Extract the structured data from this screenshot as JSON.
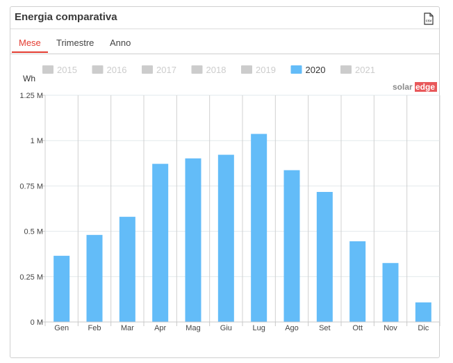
{
  "panel": {
    "title": "Energia comparativa",
    "export_icon": "csv-file-icon",
    "export_label": "CSV"
  },
  "tabs": [
    {
      "label": "Mese",
      "active": true
    },
    {
      "label": "Trimestre",
      "active": false
    },
    {
      "label": "Anno",
      "active": false
    }
  ],
  "legend": [
    {
      "label": "2015",
      "active": false
    },
    {
      "label": "2016",
      "active": false
    },
    {
      "label": "2017",
      "active": false
    },
    {
      "label": "2018",
      "active": false
    },
    {
      "label": "2019",
      "active": false
    },
    {
      "label": "2020",
      "active": true
    },
    {
      "label": "2021",
      "active": false
    }
  ],
  "brand": {
    "part1": "solar",
    "part2": "edge"
  },
  "colors": {
    "bar": "#63bcf8",
    "inactive_legend": "#cccccc",
    "active_tab": "#e33b30",
    "brand_gray": "#8a8a8a",
    "brand_red": "#e8585a"
  },
  "chart_data": {
    "type": "bar",
    "ylabel": "Wh",
    "categories": [
      "Gen",
      "Feb",
      "Mar",
      "Apr",
      "Mag",
      "Giu",
      "Lug",
      "Ago",
      "Set",
      "Ott",
      "Nov",
      "Dic"
    ],
    "series": [
      {
        "name": "2020",
        "values": [
          365000,
          480000,
          580000,
          872000,
          902000,
          922000,
          1037000,
          837000,
          717000,
          445000,
          325000,
          108000
        ]
      }
    ],
    "ylim": [
      0,
      1250000
    ],
    "yticks": [
      0,
      250000,
      500000,
      750000,
      1000000,
      1250000
    ],
    "ytick_labels": [
      "0 M",
      "0.25 M",
      "0.5 M",
      "0.75 M",
      "1 M",
      "1.25 M"
    ],
    "grid": true,
    "legend_position": "top"
  }
}
